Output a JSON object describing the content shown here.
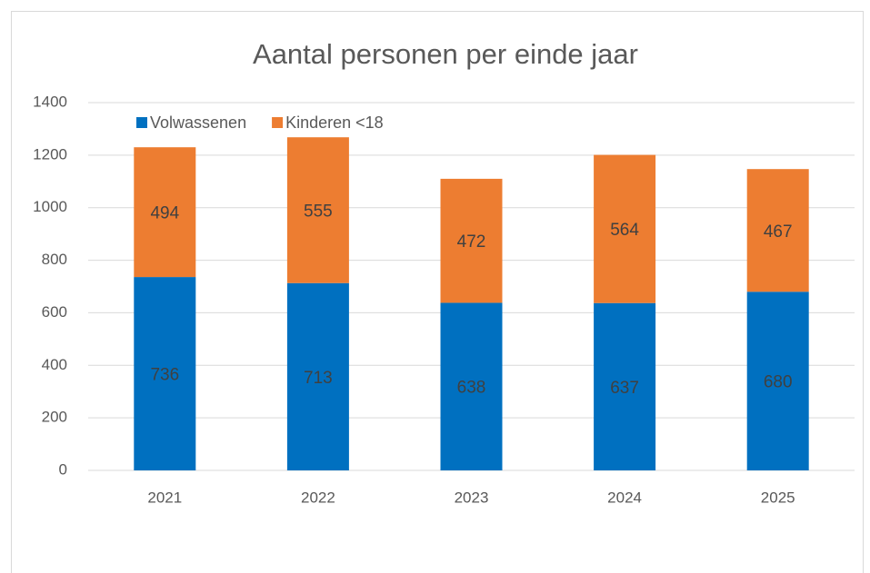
{
  "chart_data": {
    "type": "stacked_bar",
    "title": "Aantal personen per einde jaar",
    "categories": [
      "2021",
      "2022",
      "2023",
      "2024",
      "2025"
    ],
    "series": [
      {
        "name": "Volwassenen",
        "color": "#0070c0",
        "values": [
          736,
          713,
          638,
          637,
          680
        ]
      },
      {
        "name": "Kinderen <18",
        "color": "#ed7d31",
        "values": [
          494,
          555,
          472,
          564,
          467
        ]
      }
    ],
    "ylim": [
      0,
      1400
    ],
    "yticks": [
      0,
      200,
      400,
      600,
      800,
      1000,
      1200,
      1400
    ],
    "grid": true,
    "legend": "top-left"
  }
}
